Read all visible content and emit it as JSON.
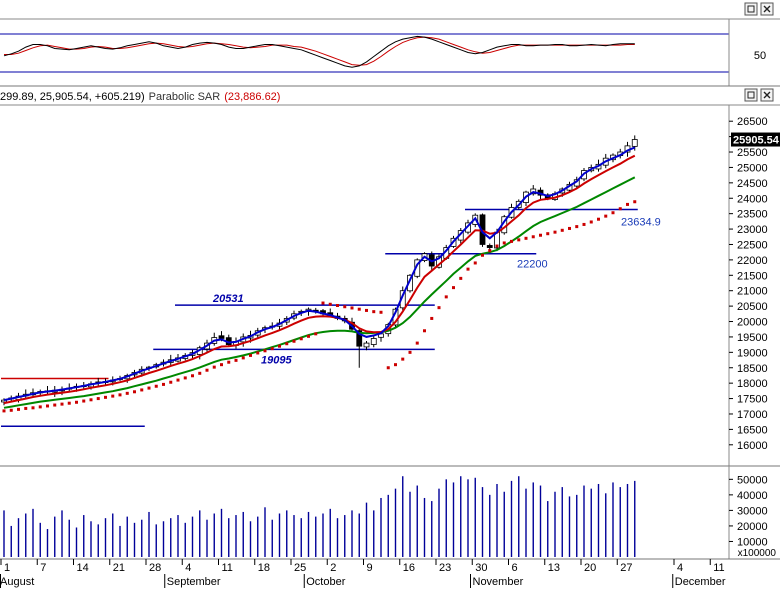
{
  "header": {
    "ohlc_prefix": "299.89, 25,905.54, +605.219)",
    "indicator_name": "Parabolic SAR",
    "indicator_value": "(23,886.62)"
  },
  "window_controls": {
    "restore_symbol": "❐",
    "close_symbol": "×"
  },
  "oscillator": {
    "ticks": [
      "50"
    ],
    "ylim": [
      0,
      100
    ]
  },
  "price_axis": {
    "ticks": [
      "26500",
      "26000",
      "25500",
      "25000",
      "24500",
      "24000",
      "23500",
      "23000",
      "22500",
      "22000",
      "21500",
      "21000",
      "20500",
      "20000",
      "19500",
      "19000",
      "18500",
      "18000",
      "17500",
      "17000",
      "16500",
      "16000"
    ],
    "last_price_label": "25905.54"
  },
  "volume_axis": {
    "ticks": [
      "50000",
      "40000",
      "30000",
      "20000",
      "10000"
    ],
    "multiplier_label": "x100000"
  },
  "x_axis": {
    "day_labels": [
      "1",
      "7",
      "14",
      "21",
      "28",
      "4",
      "11",
      "18",
      "25",
      "2",
      "9",
      "16",
      "23",
      "30",
      "6",
      "13",
      "20",
      "27",
      "4",
      "11"
    ],
    "month_labels": [
      "August",
      "September",
      "October",
      "November",
      "December"
    ]
  },
  "annotations": {
    "label_20531": "20531",
    "label_19095": "19095",
    "label_22200": "22200",
    "label_23634": "23634.9"
  },
  "colors": {
    "candle_up": "#ffffff",
    "candle_down": "#000000",
    "ma_fast": "#0000cc",
    "ma_mid": "#cc0000",
    "ma_slow": "#008800",
    "sar": "#cc0000",
    "volume": "#000099",
    "hline": "#0000aa",
    "label_red": "#cc0000"
  },
  "chart_data": {
    "type": "candlestick",
    "ylim": [
      15750,
      26750
    ],
    "volume_ylim": [
      0,
      56000
    ],
    "x": [
      "Aug 1",
      "Aug 2",
      "Aug 3",
      "Aug 4",
      "Aug 5",
      "Aug 8",
      "Aug 9",
      "Aug 10",
      "Aug 11",
      "Aug 12",
      "Aug 15",
      "Aug 16",
      "Aug 17",
      "Aug 18",
      "Aug 19",
      "Aug 22",
      "Aug 23",
      "Aug 24",
      "Aug 25",
      "Aug 26",
      "Aug 29",
      "Aug 30",
      "Aug 31",
      "Sep 1",
      "Sep 2",
      "Sep 5",
      "Sep 6",
      "Sep 7",
      "Sep 8",
      "Sep 9",
      "Sep 12",
      "Sep 13",
      "Sep 14",
      "Sep 15",
      "Sep 16",
      "Sep 19",
      "Sep 20",
      "Sep 21",
      "Sep 22",
      "Sep 23",
      "Sep 26",
      "Sep 27",
      "Sep 28",
      "Sep 29",
      "Sep 30",
      "Oct 3",
      "Oct 4",
      "Oct 5",
      "Oct 6",
      "Oct 7",
      "Oct 10",
      "Oct 11",
      "Oct 12",
      "Oct 13",
      "Oct 14",
      "Oct 17",
      "Oct 18",
      "Oct 19",
      "Oct 20",
      "Oct 21",
      "Oct 24",
      "Oct 25",
      "Oct 26",
      "Oct 27",
      "Oct 28",
      "Oct 31",
      "Nov 1",
      "Nov 2",
      "Nov 3",
      "Nov 4",
      "Nov 7",
      "Nov 8",
      "Nov 9",
      "Nov 10",
      "Nov 11",
      "Nov 14",
      "Nov 15",
      "Nov 16",
      "Nov 17",
      "Nov 18",
      "Nov 21",
      "Nov 22",
      "Nov 23",
      "Nov 24",
      "Nov 25",
      "Nov 28",
      "Nov 29",
      "Nov 30"
    ],
    "close": [
      17450,
      17520,
      17580,
      17640,
      17690,
      17730,
      17750,
      17770,
      17800,
      17840,
      17880,
      17920,
      17980,
      18010,
      18050,
      18100,
      18150,
      18250,
      18350,
      18450,
      18520,
      18600,
      18680,
      18760,
      18820,
      18900,
      18990,
      19150,
      19300,
      19480,
      19450,
      19250,
      19350,
      19500,
      19550,
      19700,
      19800,
      19850,
      19950,
      20100,
      20250,
      20330,
      20400,
      20330,
      20250,
      20200,
      20100,
      20020,
      19750,
      19200,
      19300,
      19450,
      19600,
      19900,
      20400,
      21000,
      21500,
      22000,
      22200,
      21800,
      22100,
      22400,
      22700,
      22950,
      23200,
      23450,
      22500,
      22400,
      22900,
      23400,
      23700,
      23900,
      24200,
      24300,
      24100,
      24000,
      24150,
      24300,
      24450,
      24600,
      24900,
      25000,
      25100,
      25300,
      25400,
      25500,
      25700,
      25905.54
    ],
    "ma_fast": [
      17450,
      17500,
      17550,
      17600,
      17650,
      17700,
      17730,
      17760,
      17790,
      17830,
      17870,
      17910,
      17960,
      18000,
      18040,
      18090,
      18140,
      18220,
      18310,
      18400,
      18480,
      18560,
      18640,
      18720,
      18790,
      18870,
      18950,
      19080,
      19220,
      19380,
      19420,
      19320,
      19340,
      19440,
      19520,
      19650,
      19750,
      19820,
      19920,
      20050,
      20180,
      20280,
      20350,
      20320,
      20260,
      20210,
      20130,
      20050,
      19850,
      19600,
      19500,
      19550,
      19620,
      19850,
      20300,
      20850,
      21350,
      21850,
      22100,
      21950,
      22050,
      22300,
      22600,
      22850,
      23100,
      23350,
      22900,
      22700,
      22900,
      23250,
      23550,
      23780,
      24050,
      24200,
      24150,
      24070,
      24130,
      24250,
      24400,
      24550,
      24800,
      24950,
      25050,
      25200,
      25300,
      25400,
      25550,
      25650
    ],
    "ma_mid": [
      17350,
      17400,
      17450,
      17500,
      17550,
      17590,
      17630,
      17660,
      17690,
      17720,
      17760,
      17800,
      17850,
      17890,
      17930,
      17980,
      18030,
      18090,
      18170,
      18250,
      18330,
      18400,
      18480,
      18560,
      18630,
      18700,
      18780,
      18880,
      18990,
      19110,
      19190,
      19200,
      19230,
      19300,
      19370,
      19460,
      19550,
      19630,
      19720,
      19820,
      19930,
      20030,
      20120,
      20160,
      20170,
      20160,
      20120,
      20060,
      19950,
      19780,
      19680,
      19650,
      19660,
      19750,
      19990,
      20330,
      20700,
      21100,
      21450,
      21650,
      21850,
      22050,
      22280,
      22500,
      22730,
      22960,
      22950,
      22850,
      22880,
      23050,
      23250,
      23450,
      23680,
      23860,
      23950,
      23980,
      24020,
      24100,
      24200,
      24320,
      24480,
      24620,
      24750,
      24880,
      25000,
      25120,
      25260,
      25380
    ],
    "ma_slow": [
      17200,
      17240,
      17280,
      17320,
      17360,
      17400,
      17430,
      17460,
      17490,
      17520,
      17550,
      17580,
      17620,
      17660,
      17700,
      17740,
      17790,
      17840,
      17900,
      17960,
      18020,
      18080,
      18150,
      18220,
      18290,
      18360,
      18430,
      18510,
      18600,
      18690,
      18760,
      18800,
      18850,
      18900,
      18960,
      19030,
      19100,
      19170,
      19240,
      19320,
      19400,
      19480,
      19560,
      19620,
      19660,
      19690,
      19700,
      19700,
      19680,
      19630,
      19620,
      19630,
      19650,
      19700,
      19800,
      19950,
      20150,
      20400,
      20650,
      20880,
      21100,
      21320,
      21550,
      21750,
      21950,
      22130,
      22200,
      22250,
      22320,
      22450,
      22600,
      22760,
      22930,
      23100,
      23230,
      23330,
      23420,
      23520,
      23620,
      23720,
      23840,
      23960,
      24080,
      24200,
      24320,
      24440,
      24560,
      24680
    ],
    "sar": [
      17100,
      17120,
      17150,
      17180,
      17200,
      17230,
      17260,
      17290,
      17320,
      17350,
      17380,
      17420,
      17460,
      17500,
      17540,
      17580,
      17620,
      17670,
      17720,
      17780,
      17840,
      17900,
      17960,
      18030,
      18100,
      18170,
      18240,
      18320,
      18420,
      18520,
      18600,
      18680,
      18740,
      18820,
      18900,
      18980,
      19050,
      19120,
      19200,
      19280,
      19360,
      19440,
      19520,
      19600,
      20600,
      20560,
      20520,
      20480,
      20440,
      20400,
      20360,
      20320,
      20300,
      18500,
      18600,
      18780,
      19000,
      19300,
      19700,
      20100,
      20450,
      20800,
      21100,
      21400,
      21700,
      21900,
      22150,
      22300,
      22450,
      22550,
      22600,
      22650,
      22700,
      22750,
      22800,
      22850,
      22900,
      22960,
      23020,
      23080,
      23150,
      23230,
      23320,
      23420,
      23530,
      23660,
      23800,
      23886.62
    ],
    "volume": [
      30000,
      20000,
      25000,
      28000,
      31000,
      22000,
      18000,
      26000,
      30000,
      24000,
      19000,
      27000,
      23000,
      21000,
      25000,
      28000,
      20000,
      26000,
      22000,
      24000,
      29000,
      21000,
      23000,
      25000,
      27000,
      22000,
      26000,
      30000,
      24000,
      28000,
      31000,
      25000,
      27000,
      29000,
      23000,
      26000,
      32000,
      24000,
      28000,
      30000,
      27000,
      25000,
      29000,
      26000,
      28000,
      31000,
      25000,
      27000,
      30000,
      28000,
      35000,
      30000,
      38000,
      40000,
      44000,
      52000,
      42000,
      46000,
      38000,
      36000,
      44000,
      50000,
      48000,
      52000,
      50000,
      51000,
      45000,
      40000,
      47000,
      42000,
      49000,
      52000,
      44000,
      48000,
      46000,
      36000,
      42000,
      45000,
      39000,
      40000,
      46000,
      44000,
      47000,
      41000,
      48000,
      45000,
      47000,
      49000
    ],
    "oscillator": {
      "k": [
        45,
        48,
        52,
        58,
        62,
        62,
        60,
        56,
        55,
        54,
        56,
        58,
        60,
        58,
        56,
        55,
        57,
        60,
        62,
        64,
        66,
        64,
        60,
        58,
        56,
        58,
        62,
        64,
        65,
        64,
        62,
        58,
        56,
        56,
        58,
        60,
        62,
        62,
        60,
        58,
        56,
        54,
        50,
        46,
        42,
        38,
        34,
        30,
        28,
        30,
        36,
        44,
        52,
        60,
        66,
        70,
        72,
        74,
        73,
        70,
        66,
        62,
        58,
        54,
        50,
        48,
        50,
        54,
        58,
        60,
        62,
        62,
        60,
        60,
        61,
        61,
        62,
        62,
        60,
        60,
        61,
        62,
        61,
        60,
        62,
        63,
        63,
        63
      ],
      "d": [
        47,
        47,
        49,
        53,
        57,
        60,
        61,
        59,
        57,
        55,
        55,
        56,
        58,
        59,
        58,
        56,
        56,
        57,
        59,
        61,
        63,
        64,
        63,
        61,
        59,
        58,
        59,
        61,
        63,
        64,
        63,
        62,
        60,
        58,
        57,
        58,
        59,
        61,
        61,
        61,
        59,
        58,
        55,
        52,
        48,
        44,
        40,
        36,
        32,
        31,
        32,
        37,
        44,
        52,
        59,
        65,
        69,
        72,
        73,
        72,
        70,
        66,
        62,
        58,
        54,
        51,
        49,
        50,
        53,
        56,
        59,
        61,
        61,
        61,
        61,
        61,
        61,
        61,
        61,
        61,
        61,
        61,
        61,
        61,
        61,
        61,
        62,
        62
      ]
    },
    "annotations": [
      {
        "label": "20531",
        "from": "Sep 2",
        "to": "Oct 21",
        "value": 20531
      },
      {
        "label": "19095",
        "from": "Aug 30",
        "to": "Oct 21",
        "value": 19095
      },
      {
        "label": "22200",
        "from": "Oct 13",
        "to": "Nov 10",
        "value": 22200
      },
      {
        "label": "23634.9",
        "from": "Oct 28",
        "to": "Nov 30",
        "value": 23634.9
      },
      {
        "label": "",
        "from": "Aug 1",
        "to": "Aug 26",
        "value": 16600
      },
      {
        "label": "",
        "from": "Aug 1",
        "to": "Aug 19",
        "value": 18150
      }
    ]
  }
}
